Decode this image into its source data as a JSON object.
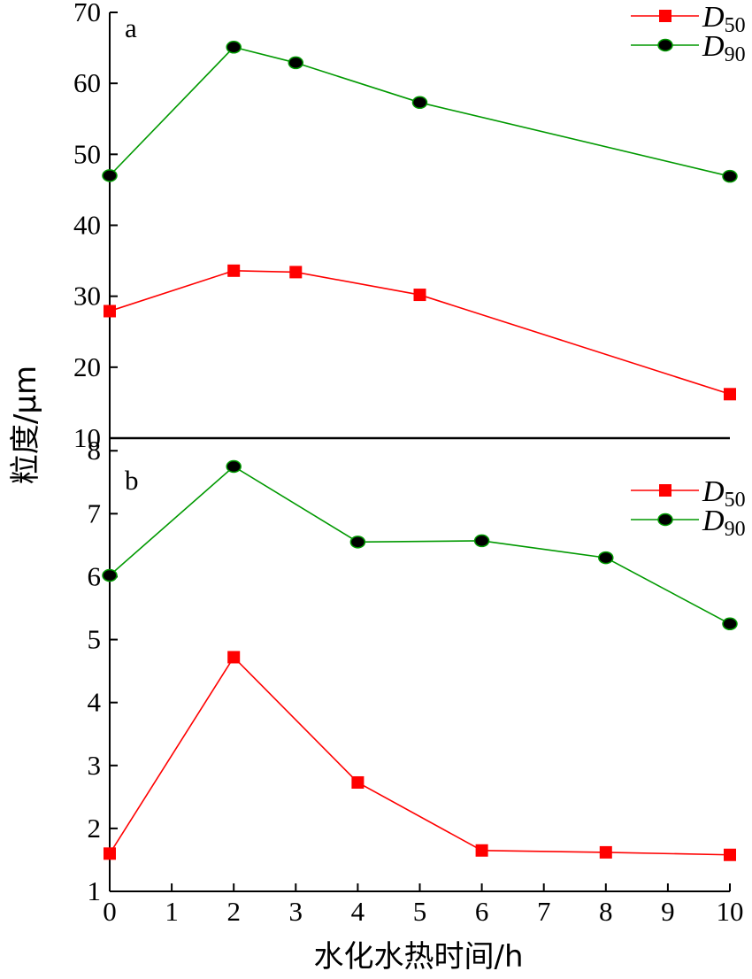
{
  "chart_data": [
    {
      "type": "line",
      "panel_label": "a",
      "x": [
        0,
        2,
        3,
        5,
        10
      ],
      "ylim": [
        10,
        70
      ],
      "yticks": [
        10,
        20,
        30,
        40,
        50,
        60,
        70
      ],
      "series": [
        {
          "name": "D",
          "subscript": "50",
          "color": "#ff0000",
          "marker": "square",
          "values": [
            27.9,
            33.6,
            33.4,
            30.2,
            16.2
          ]
        },
        {
          "name": "D",
          "subscript": "90",
          "color": "#009900",
          "marker": "circle",
          "values": [
            47.0,
            65.1,
            62.9,
            57.3,
            46.9
          ]
        }
      ],
      "legend": "top-right"
    },
    {
      "type": "line",
      "panel_label": "b",
      "x": [
        0,
        2,
        4,
        6,
        8,
        10
      ],
      "ylim": [
        1,
        8.2
      ],
      "yticks": [
        1,
        2,
        3,
        4,
        5,
        6,
        7,
        8
      ],
      "series": [
        {
          "name": "D",
          "subscript": "50",
          "color": "#ff0000",
          "marker": "square",
          "values": [
            1.6,
            4.72,
            2.73,
            1.65,
            1.62,
            1.58
          ]
        },
        {
          "name": "D",
          "subscript": "90",
          "color": "#009900",
          "marker": "circle",
          "values": [
            6.02,
            7.75,
            6.55,
            6.57,
            6.3,
            5.25
          ]
        }
      ],
      "legend": "top-right"
    }
  ],
  "shared_x_axis": {
    "label": "水化水热时间/h",
    "xlim": [
      0,
      10
    ],
    "ticks": [
      "0",
      "1",
      "2",
      "3",
      "4",
      "5",
      "6",
      "7",
      "8",
      "9",
      "10"
    ]
  },
  "shared_y_axis": {
    "label": "粒度/μm"
  }
}
